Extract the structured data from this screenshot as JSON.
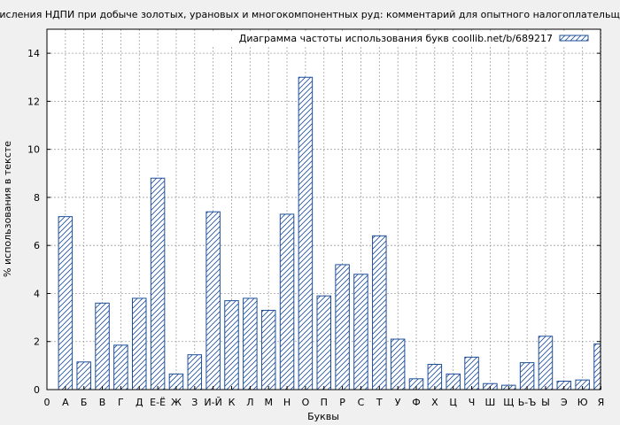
{
  "chart_data": {
    "type": "bar",
    "title": "исчисления НДПИ при добыче золотых, урановых и многокомпонентных руд: комментарий для опытного налогоплательщика",
    "xlabel": "Буквы",
    "ylabel": "% использования в тексте",
    "legend_text": "Диаграмма частоты использования букв coollib.net/b/689217",
    "legend_position": "top-right",
    "ylim": [
      0,
      15
    ],
    "yticks": [
      0,
      2,
      4,
      6,
      8,
      10,
      12,
      14
    ],
    "grid": true,
    "colors": {
      "bar_stroke": "#1f4f9a",
      "bar_fill": "#ffffff",
      "plot_bg": "#ffffff",
      "page_bg": "#f0f0f0",
      "grid": "#a0a0a0"
    },
    "categories": [
      "0",
      "А",
      "Б",
      "В",
      "Г",
      "Д",
      "Е-Ё",
      "Ж",
      "З",
      "И-Й",
      "К",
      "Л",
      "М",
      "Н",
      "О",
      "П",
      "Р",
      "С",
      "Т",
      "У",
      "Ф",
      "Х",
      "Ц",
      "Ч",
      "Ш",
      "Щ",
      "Ь-Ъ",
      "Ы",
      "Э",
      "Ю",
      "Я"
    ],
    "values": [
      0,
      7.2,
      1.15,
      3.6,
      1.85,
      3.8,
      8.8,
      0.65,
      1.45,
      7.4,
      3.7,
      3.8,
      3.3,
      7.3,
      13.0,
      3.9,
      5.2,
      4.8,
      6.4,
      2.1,
      0.45,
      1.05,
      0.65,
      1.35,
      0.25,
      0.18,
      1.12,
      2.22,
      0.35,
      0.4,
      1.9
    ]
  }
}
